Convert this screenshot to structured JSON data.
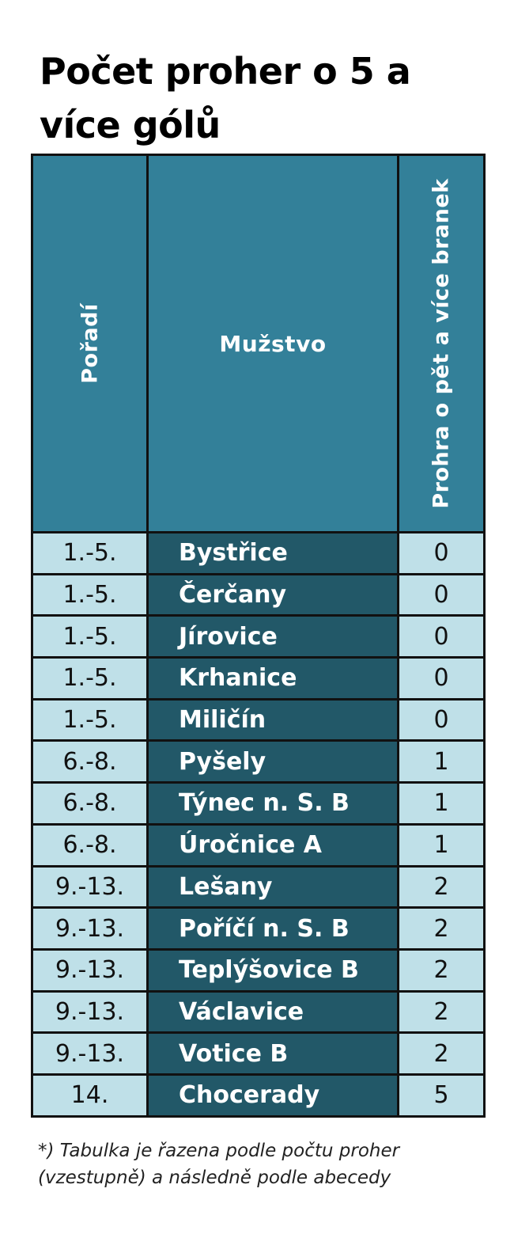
{
  "title": "Počet proher o 5 a více gólů",
  "table": {
    "headers": {
      "rank": "Pořadí",
      "team": "Mužstvo",
      "losses": "Prohra o pět a více branek"
    },
    "rows": [
      {
        "rank": "1.-5.",
        "team": "Bystřice",
        "losses": "0"
      },
      {
        "rank": "1.-5.",
        "team": "Čerčany",
        "losses": "0"
      },
      {
        "rank": "1.-5.",
        "team": "Jírovice",
        "losses": "0"
      },
      {
        "rank": "1.-5.",
        "team": "Krhanice",
        "losses": "0"
      },
      {
        "rank": "1.-5.",
        "team": "Miličín",
        "losses": "0"
      },
      {
        "rank": "6.-8.",
        "team": "Pyšely",
        "losses": "1"
      },
      {
        "rank": "6.-8.",
        "team": "Týnec n. S. B",
        "losses": "1"
      },
      {
        "rank": "6.-8.",
        "team": "Úročnice A",
        "losses": "1"
      },
      {
        "rank": "9.-13.",
        "team": "Lešany",
        "losses": "2"
      },
      {
        "rank": "9.-13.",
        "team": "Poříčí n. S. B",
        "losses": "2"
      },
      {
        "rank": "9.-13.",
        "team": "Teplýšovice B",
        "losses": "2"
      },
      {
        "rank": "9.-13.",
        "team": "Václavice",
        "losses": "2"
      },
      {
        "rank": "9.-13.",
        "team": "Votice B",
        "losses": "2"
      },
      {
        "rank": "14.",
        "team": "Chocerady",
        "losses": "5"
      }
    ]
  },
  "footnote": {
    "line1": "*) Tabulka je řazena podle počtu proher",
    "line2": "(vzestupně) a následně podle abecedy"
  },
  "colors": {
    "header_bg": "#338099",
    "team_bg": "#225868",
    "cell_bg": "#bfe0e8",
    "border": "#111111"
  }
}
